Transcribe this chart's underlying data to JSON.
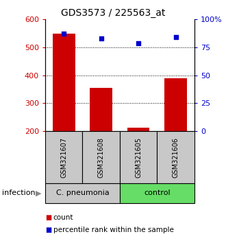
{
  "title": "GDS3573 / 225563_at",
  "categories": [
    "GSM321607",
    "GSM321608",
    "GSM321605",
    "GSM321606"
  ],
  "bar_values": [
    548,
    355,
    213,
    390
  ],
  "percentile_values": [
    87,
    83,
    79,
    84
  ],
  "bar_color": "#cc0000",
  "dot_color": "#0000cc",
  "ylim_left": [
    200,
    600
  ],
  "ylim_right": [
    0,
    100
  ],
  "yticks_left": [
    200,
    300,
    400,
    500,
    600
  ],
  "yticks_right": [
    0,
    25,
    50,
    75,
    100
  ],
  "ytick_labels_right": [
    "0",
    "25",
    "50",
    "75",
    "100%"
  ],
  "group_row_color_cp": "#c8c8c8",
  "group_row_color_ctrl": "#66dd66",
  "sample_box_color": "#c8c8c8",
  "infection_label": "infection",
  "legend_count_label": "count",
  "legend_pct_label": "percentile rank within the sample",
  "bar_width": 0.6
}
